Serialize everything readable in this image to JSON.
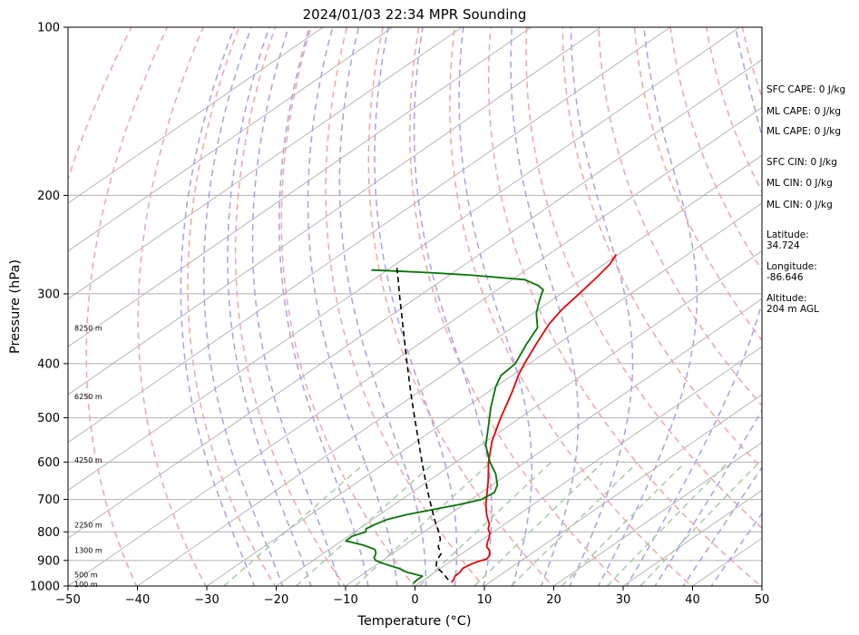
{
  "chart_data": {
    "type": "line",
    "title": "2024/01/03 22:34 MPR Sounding",
    "xlabel": "Temperature (°C)",
    "ylabel": "Pressure (hPa)",
    "xlim": [
      -50,
      50
    ],
    "ylim": [
      1000,
      100
    ],
    "y_scale": "log",
    "skew": "skew-T log-P",
    "x_ticks": [
      -50,
      -40,
      -30,
      -20,
      -10,
      0,
      10,
      20,
      30,
      40,
      50
    ],
    "y_ticks": [
      1000,
      900,
      800,
      700,
      600,
      500,
      400,
      300,
      200,
      100
    ],
    "grid": "horizontal isobars",
    "colors": {
      "temperature": "#ee0000",
      "dewpoint": "#007700",
      "parcel": "#000000",
      "dry_adiabats": "#f4a5a5",
      "moist_adiabats": "#a8a0ee",
      "mixing_ratio": "#a3cfa3",
      "isotherms": "#b0b0b0"
    },
    "series": [
      {
        "key": "temperature",
        "pressure": [
          985,
          975,
          960,
          945,
          930,
          915,
          905,
          895,
          880,
          865,
          850,
          835,
          820,
          805,
          790,
          775,
          760,
          745,
          730,
          715,
          700,
          650,
          600,
          550,
          500,
          450,
          420,
          400,
          370,
          340,
          320,
          300,
          280,
          265,
          255
        ],
        "temperature": [
          4.5,
          4.3,
          3.7,
          3.6,
          3.2,
          3.5,
          3.9,
          4.7,
          4.3,
          3.4,
          2.1,
          1.3,
          0.6,
          -0.2,
          -1.4,
          -2.2,
          -3.4,
          -4.6,
          -5.7,
          -6.8,
          -7.8,
          -11.3,
          -15.3,
          -19.2,
          -22.8,
          -26.5,
          -29.1,
          -30.7,
          -33.0,
          -35.4,
          -36.6,
          -37.4,
          -38.3,
          -39.2,
          -40.3
        ]
      },
      {
        "key": "dewpoint",
        "pressure": [
          990,
          975,
          960,
          945,
          930,
          910,
          900,
          890,
          875,
          860,
          845,
          830,
          815,
          800,
          790,
          775,
          760,
          745,
          730,
          715,
          700,
          680,
          660,
          630,
          600,
          560,
          520,
          480,
          440,
          420,
          400,
          370,
          345,
          325,
          310,
          300,
          295,
          290,
          283,
          278,
          275,
          273,
          272
        ],
        "dewpoint": [
          -0.8,
          -1.0,
          -1.0,
          -4.0,
          -6.0,
          -9.5,
          -11.0,
          -11.8,
          -12.4,
          -13.4,
          -16.0,
          -19.4,
          -19.5,
          -18.4,
          -19.0,
          -18.6,
          -17.9,
          -16.1,
          -13.4,
          -10.7,
          -8.5,
          -8.1,
          -9.2,
          -11.8,
          -15.1,
          -19.2,
          -22.6,
          -26.3,
          -30.0,
          -31.6,
          -32.0,
          -34.4,
          -36.3,
          -39.5,
          -41.5,
          -42.8,
          -43.4,
          -45.0,
          -48.2,
          -56.5,
          -63.2,
          -68.9,
          -72.3
        ]
      },
      {
        "key": "parcel",
        "pressure": [
          975,
          950,
          925,
          900,
          875,
          850,
          825,
          800,
          775,
          750,
          725,
          700,
          650,
          600,
          550,
          500,
          450,
          400,
          350,
          300,
          280,
          268
        ],
        "temperature": [
          3.5,
          1.5,
          -0.9,
          -2.2,
          -3.0,
          -4.9,
          -6.1,
          -7.9,
          -9.9,
          -11.9,
          -13.9,
          -16.0,
          -20.3,
          -24.9,
          -29.8,
          -35.2,
          -41.1,
          -47.6,
          -54.9,
          -63.3,
          -67.0,
          -69.4
        ]
      }
    ],
    "height_labels": [
      {
        "pressure": 345,
        "text": "8250 m"
      },
      {
        "pressure": 458,
        "text": "6250 m"
      },
      {
        "pressure": 595,
        "text": "4250 m"
      },
      {
        "pressure": 777,
        "text": "2250 m"
      },
      {
        "pressure": 863,
        "text": "1300 m"
      },
      {
        "pressure": 955,
        "text": "500 m"
      },
      {
        "pressure": 993,
        "text": "100 m"
      }
    ],
    "annotations": [
      "SFC CAPE: 0 J/kg",
      "ML CAPE: 0 J/kg",
      "ML CAPE: 0 J/kg",
      "SFC CIN: 0 J/kg",
      "ML CIN: 0 J/kg",
      "ML CIN: 0 J/kg",
      "Latitude:",
      "34.724",
      "Longitude:",
      "-86.646",
      "Altitude:",
      "204 m AGL"
    ]
  }
}
